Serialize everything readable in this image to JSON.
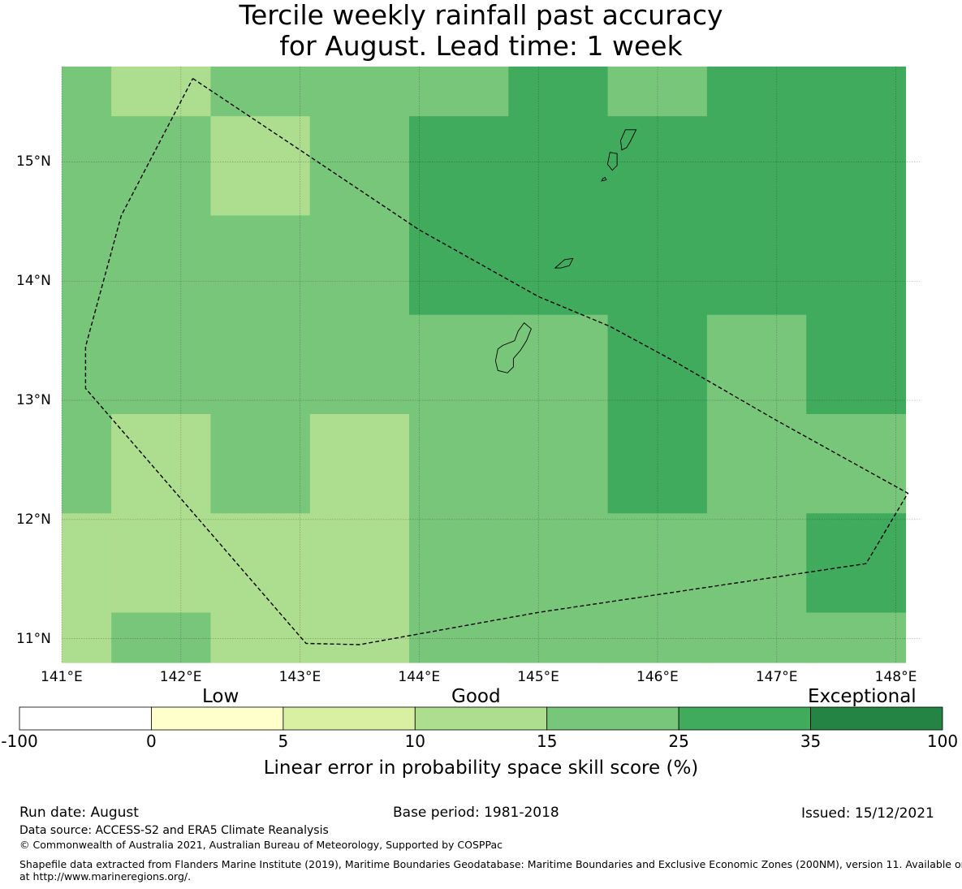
{
  "title": {
    "line1": "Tercile weekly rainfall past accuracy",
    "line2": "for August. Lead time: 1 week"
  },
  "map": {
    "lon_range": [
      141.0,
      148.2
    ],
    "lat_range": [
      10.8,
      15.8
    ],
    "grid_step": 0.833,
    "lon_ticks": [
      "141°E",
      "142°E",
      "143°E",
      "144°E",
      "145°E",
      "146°E",
      "147°E",
      "148°E"
    ],
    "lat_ticks": [
      "15°N",
      "14°N",
      "13°N",
      "12°N",
      "11°N"
    ],
    "class_colors": [
      "#ffffcc",
      "#d9f0a3",
      "#addd8e",
      "#78c679",
      "#41ab5d",
      "#238443"
    ],
    "cells_top_to_bottom": [
      [
        3,
        2,
        3,
        3,
        3,
        4,
        3,
        4,
        4
      ],
      [
        3,
        3,
        2,
        3,
        4,
        4,
        4,
        4,
        4
      ],
      [
        3,
        3,
        3,
        3,
        4,
        4,
        4,
        4,
        4
      ],
      [
        3,
        3,
        3,
        3,
        3,
        3,
        4,
        3,
        4
      ],
      [
        3,
        2,
        3,
        2,
        3,
        3,
        4,
        3,
        3
      ],
      [
        2,
        2,
        2,
        2,
        3,
        3,
        3,
        3,
        4
      ],
      [
        2,
        3,
        2,
        2,
        3,
        3,
        3,
        3,
        3
      ],
      [
        2,
        3,
        2,
        2,
        2,
        3,
        3,
        2,
        3
      ],
      [
        3,
        3,
        3,
        2,
        3,
        2,
        2,
        3,
        2
      ]
    ],
    "eez_outline": [
      [
        142.1,
        15.7
      ],
      [
        143.0,
        15.1
      ],
      [
        144.0,
        14.43
      ],
      [
        145.0,
        13.87
      ],
      [
        145.6,
        13.62
      ],
      [
        146.1,
        13.35
      ],
      [
        147.0,
        12.83
      ],
      [
        148.1,
        12.22
      ],
      [
        147.75,
        11.63
      ],
      [
        145.0,
        11.22
      ],
      [
        143.5,
        10.95
      ],
      [
        143.05,
        10.96
      ],
      [
        141.2,
        13.1
      ],
      [
        141.2,
        13.45
      ],
      [
        141.5,
        14.55
      ],
      [
        142.1,
        15.7
      ]
    ],
    "islands": [
      [
        [
          144.88,
          13.65
        ],
        [
          144.94,
          13.6
        ],
        [
          144.9,
          13.5
        ],
        [
          144.85,
          13.42
        ],
        [
          144.79,
          13.35
        ],
        [
          144.79,
          13.28
        ],
        [
          144.74,
          13.23
        ],
        [
          144.66,
          13.25
        ],
        [
          144.64,
          13.33
        ],
        [
          144.66,
          13.43
        ],
        [
          144.7,
          13.46
        ],
        [
          144.8,
          13.5
        ],
        [
          144.83,
          13.58
        ]
      ],
      [
        [
          145.22,
          14.18
        ],
        [
          145.29,
          14.19
        ],
        [
          145.26,
          14.13
        ],
        [
          145.19,
          14.11
        ],
        [
          145.14,
          14.11
        ]
      ],
      [
        [
          145.73,
          15.27
        ],
        [
          145.82,
          15.27
        ],
        [
          145.77,
          15.17
        ],
        [
          145.74,
          15.12
        ],
        [
          145.7,
          15.1
        ],
        [
          145.69,
          15.18
        ]
      ],
      [
        [
          145.6,
          15.08
        ],
        [
          145.66,
          15.07
        ],
        [
          145.66,
          14.97
        ],
        [
          145.62,
          14.93
        ],
        [
          145.58,
          14.98
        ],
        [
          145.59,
          15.03
        ]
      ],
      [
        [
          145.54,
          14.86
        ],
        [
          145.56,
          14.87
        ],
        [
          145.57,
          14.85
        ],
        [
          145.53,
          14.84
        ]
      ]
    ]
  },
  "colorbar": {
    "header_low": "Low",
    "header_good": "Good",
    "header_exceptional": "Exceptional",
    "bins": [
      {
        "from": "-100",
        "to": "0",
        "color": "#ffffff"
      },
      {
        "from": "0",
        "to": "5",
        "color": "#ffffcc"
      },
      {
        "from": "5",
        "to": "10",
        "color": "#d9f0a3"
      },
      {
        "from": "10",
        "to": "15",
        "color": "#addd8e"
      },
      {
        "from": "15",
        "to": "25",
        "color": "#78c679"
      },
      {
        "from": "25",
        "to": "35",
        "color": "#41ab5d"
      },
      {
        "from": "35",
        "to": "100",
        "color": "#238443"
      }
    ],
    "tick_labels": [
      "-100",
      "0",
      "5",
      "10",
      "15",
      "25",
      "35",
      "100"
    ],
    "label": "Linear error in probability space skill score (%)"
  },
  "footer": {
    "run_date": "Run date: August",
    "base_period": "Base period: 1981-2018",
    "issued": "Issued: 15/12/2021",
    "data_source": "Data source: ACCESS-S2 and ERA5 Climate Reanalysis",
    "copyright": "© Commonwealth of Australia 2021, Australian Bureau of Meteorology, Supported by COSPPac",
    "shapefile_line1": "Shapefile data extracted from Flanders Marine Institute (2019), Maritime Boundaries Geodatabase: Maritime Boundaries and Exclusive Economic Zones (200NM), version 11. Available online",
    "shapefile_line2": "at http://www.marineregions.org/."
  }
}
